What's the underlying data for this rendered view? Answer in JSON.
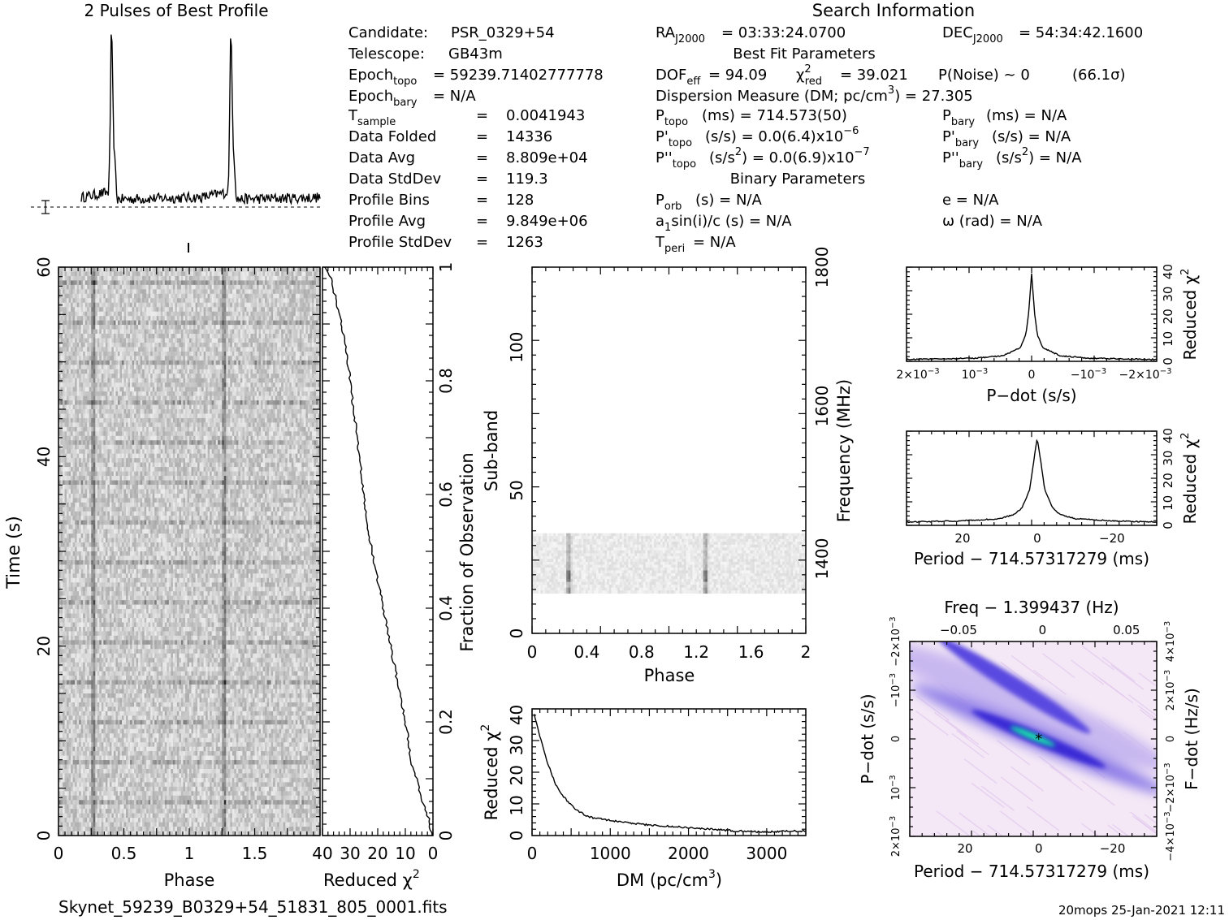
{
  "profile": {
    "title": "2 Pulses of Best Profile"
  },
  "info": {
    "heading": "Search Information",
    "candidate_label": "Candidate:",
    "candidate": "PSR_0329+54",
    "telescope_label": "Telescope:",
    "telescope": "GB43m",
    "epoch_topo": "= 59239.71402777778",
    "epoch_bary": "= N/A",
    "t_sample": "0.0041943",
    "data_folded": "14336",
    "data_avg": "8.809e+04",
    "data_stddev": "119.3",
    "profile_bins": "128",
    "profile_avg": "9.849e+06",
    "profile_stddev": "1263",
    "ra": "= 03:33:24.0700",
    "dec": "= 54:34:42.1600",
    "best_fit_heading": "Best Fit Parameters",
    "dof": "= 94.09",
    "chi2red": "= 39.021",
    "pnoise": "P(Noise) ~ 0",
    "sigma": "(66.1σ)",
    "dm_label": "Dispersion Measure (DM; pc/cm",
    "dm_value": ") = 27.305",
    "ptopo": "(ms) =  714.573(50)",
    "pdot_topo": "(s/s) = 0.0(6.4)x10",
    "pdot_exp": "−6",
    "pddot_topo": ") = 0.0(6.9)x10",
    "pddot_exp": "−7",
    "pbary": "(ms) = N/A",
    "pdot_bary": "(s/s) = N/A",
    "pddot_bary": ") = N/A",
    "binary_heading": "Binary Parameters",
    "porb": "(s) = N/A",
    "a1sini": "sin(i)/c (s) = N/A",
    "tperi": "= N/A",
    "ecc": "e = N/A",
    "omega": "ω (rad) = N/A"
  },
  "footer": {
    "filename": "Skynet_59239_B0329+54_51831_805_0001.fits",
    "stamp": "20mops 25-Jan-2021 12:11"
  },
  "colors": {
    "ink": "#000000",
    "cmap_low": "#f4e8f6",
    "cmap_mid": "#3a2bd6",
    "cmap_high": "#19e0a8"
  },
  "chart_data": [
    {
      "type": "line",
      "id": "pulse-profile",
      "title": "2 Pulses of Best Profile",
      "x": [
        0.0,
        0.23,
        0.24,
        0.25,
        0.26,
        0.27,
        0.3,
        1.0,
        1.23,
        1.24,
        1.25,
        1.26,
        1.27,
        1.3,
        2.0
      ],
      "y": [
        0.05,
        0.08,
        0.35,
        0.95,
        0.9,
        0.4,
        0.04,
        0.05,
        0.08,
        0.35,
        0.95,
        0.9,
        0.4,
        0.04,
        0.05
      ]
    },
    {
      "type": "heatmap",
      "id": "time-vs-phase",
      "xlabel": "Phase",
      "ylabel": "Time (s)",
      "xticks": [
        "0",
        "0.5",
        "1",
        "1.5"
      ],
      "yticks": [
        "0",
        "20",
        "40",
        "60"
      ],
      "xlim": [
        0,
        2
      ],
      "ylim": [
        0,
        60
      ],
      "pulse_phases": [
        0.26,
        1.26
      ]
    },
    {
      "type": "line",
      "id": "chi2-vs-fraction",
      "xlabel": "Reduced χ",
      "ylabel_right": "Fraction of Observation",
      "xticks": [
        "40",
        "30",
        "20",
        "10",
        "0"
      ],
      "yticks": [
        "0",
        "0.2",
        "0.4",
        "0.6",
        "0.8",
        "1"
      ],
      "xlim": [
        40,
        0
      ],
      "ylim": [
        0,
        1
      ],
      "x": [
        0.5,
        1.5,
        3,
        5,
        6,
        8,
        9,
        10,
        12,
        14,
        16,
        18,
        20,
        22,
        24,
        25,
        26,
        27,
        28,
        29,
        30,
        31,
        32,
        33,
        34,
        35,
        36,
        37,
        38,
        39
      ],
      "y": [
        0.0,
        0.03,
        0.05,
        0.08,
        0.1,
        0.13,
        0.17,
        0.2,
        0.25,
        0.3,
        0.35,
        0.4,
        0.45,
        0.5,
        0.55,
        0.6,
        0.64,
        0.68,
        0.72,
        0.76,
        0.8,
        0.84,
        0.87,
        0.9,
        0.92,
        0.94,
        0.96,
        0.98,
        0.99,
        1.0
      ]
    },
    {
      "type": "heatmap",
      "id": "subband-vs-phase",
      "xlabel": "Phase",
      "ylabel": "Sub-band",
      "ylabel_right": "Frequency (MHz)",
      "xticks": [
        "0",
        "0.4",
        "0.8",
        "1.2",
        "1.6",
        "2"
      ],
      "yticks": [
        "0",
        "50",
        "100"
      ],
      "yticks_right": [
        "1400",
        "1600",
        "1800"
      ],
      "xlim": [
        0,
        2
      ],
      "ylim": [
        0,
        128
      ],
      "band_range": [
        14,
        35
      ],
      "pulse_phases": [
        0.26,
        1.26
      ]
    },
    {
      "type": "line",
      "id": "chi2-vs-dm",
      "xlabel": "DM (pc/cm",
      "ylabel": "Reduced χ",
      "xticks": [
        "0",
        "1000",
        "2000",
        "3000"
      ],
      "yticks": [
        "0",
        "10",
        "20",
        "30",
        "40"
      ],
      "xlim": [
        0,
        3500
      ],
      "ylim": [
        0,
        42
      ],
      "x": [
        27,
        100,
        200,
        300,
        400,
        500,
        600,
        700,
        800,
        1000,
        1200,
        1500,
        1800,
        2000,
        2200,
        2500,
        2800,
        3000,
        3200,
        3500
      ],
      "y": [
        40,
        33,
        24,
        17,
        13,
        10,
        8,
        6.5,
        5.8,
        5,
        4.3,
        3.5,
        3,
        2.7,
        2.3,
        1.7,
        1.3,
        1.2,
        1.4,
        1.5
      ]
    },
    {
      "type": "line",
      "id": "chi2-vs-pdot",
      "xlabel": "P−dot (s/s)",
      "ylabel_right": "Reduced χ",
      "xticks": [
        "2×10",
        "10",
        "0",
        "−10",
        "−2×10"
      ],
      "xtick_exp": "−3",
      "yticks": [
        "0",
        "10",
        "20",
        "30",
        "40"
      ],
      "xlim": [
        0.0022,
        -0.0022
      ],
      "ylim": [
        0,
        42
      ],
      "x": [
        0.0022,
        0.001,
        0.0005,
        0.0002,
        0.0001,
        5e-05,
        0.0,
        -5e-05,
        -0.0001,
        -0.0002,
        -0.0005,
        -0.001,
        -0.0022
      ],
      "y": [
        0.8,
        1.4,
        2.5,
        6,
        12,
        22,
        39,
        22,
        12,
        6,
        2.5,
        1.4,
        0.8
      ]
    },
    {
      "type": "line",
      "id": "chi2-vs-period",
      "xlabel": "Period − 714.57317279 (ms)",
      "ylabel_right": "Reduced χ",
      "xticks": [
        "20",
        "0",
        "−20"
      ],
      "yticks": [
        "0",
        "10",
        "20",
        "30",
        "40"
      ],
      "xlim": [
        35,
        -32
      ],
      "ylim": [
        0,
        42
      ],
      "x": [
        35,
        20,
        10,
        6,
        4,
        2,
        1,
        0,
        -1,
        -2,
        -4,
        -6,
        -10,
        -20,
        -32
      ],
      "y": [
        1.5,
        2,
        3,
        5,
        8,
        16,
        28,
        39,
        28,
        16,
        8,
        5,
        3,
        2,
        1.5
      ]
    },
    {
      "type": "heatmap",
      "id": "pdot-vs-period",
      "xlabel": "Period − 714.57317279 (ms)",
      "ylabel": "P−dot (s/s)",
      "xlabel_top": "Freq − 1.399437 (Hz)",
      "ylabel_right": "F−dot (Hz/s)",
      "xticks": [
        "20",
        "0",
        "−20"
      ],
      "xticks_top": [
        "−0.05",
        "0",
        "0.05"
      ],
      "yticks": [
        "2×10",
        "10",
        "0",
        "−10",
        "−2×10"
      ],
      "yticks_right": [
        "−4×10",
        "−2×10",
        "0",
        "2×10",
        "4×10"
      ],
      "tick_exp": "−3",
      "xlim": [
        35,
        -32
      ],
      "ylim": [
        -0.002,
        0.002
      ],
      "best": [
        0,
        0
      ]
    }
  ]
}
